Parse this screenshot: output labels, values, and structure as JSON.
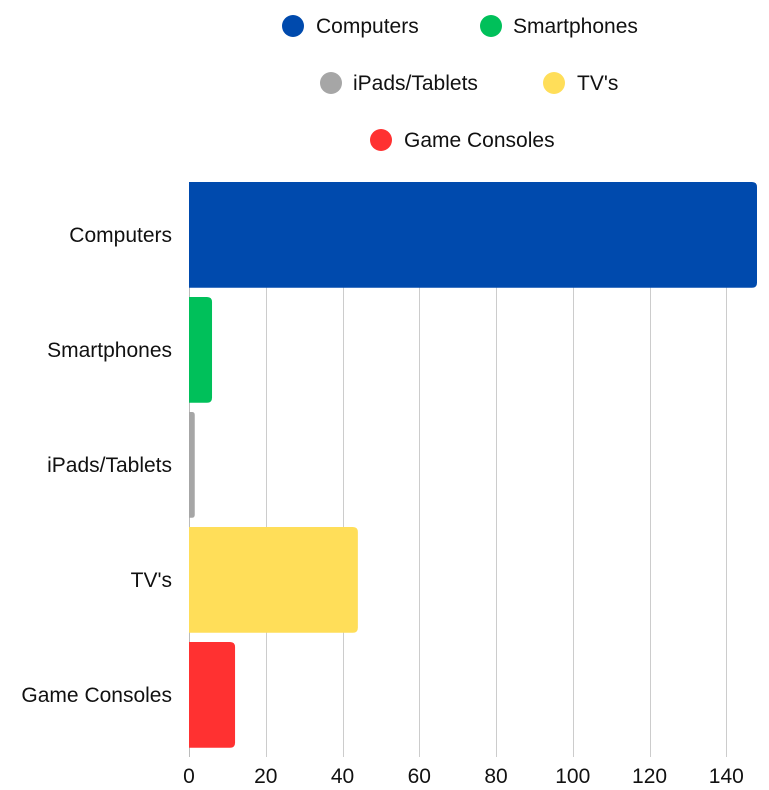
{
  "chart_data": {
    "type": "bar",
    "orientation": "horizontal",
    "title": "",
    "xlabel": "",
    "ylabel": "",
    "categories": [
      "Computers",
      "Smartphones",
      "iPads/Tablets",
      "TV's",
      "Game Consoles"
    ],
    "values": [
      148,
      6,
      1.5,
      44,
      12
    ],
    "colors": [
      "#004aad",
      "#00c05a",
      "#a6a6a6",
      "#ffde59",
      "#ff3131"
    ],
    "xlim": [
      0,
      148
    ],
    "xticks": [
      0,
      20,
      40,
      60,
      80,
      100,
      120,
      140
    ],
    "grid": "vertical",
    "legend": {
      "position": "top",
      "entries": [
        "Computers",
        "Smartphones",
        "iPads/Tablets",
        "TV's",
        "Game Consoles"
      ]
    }
  }
}
